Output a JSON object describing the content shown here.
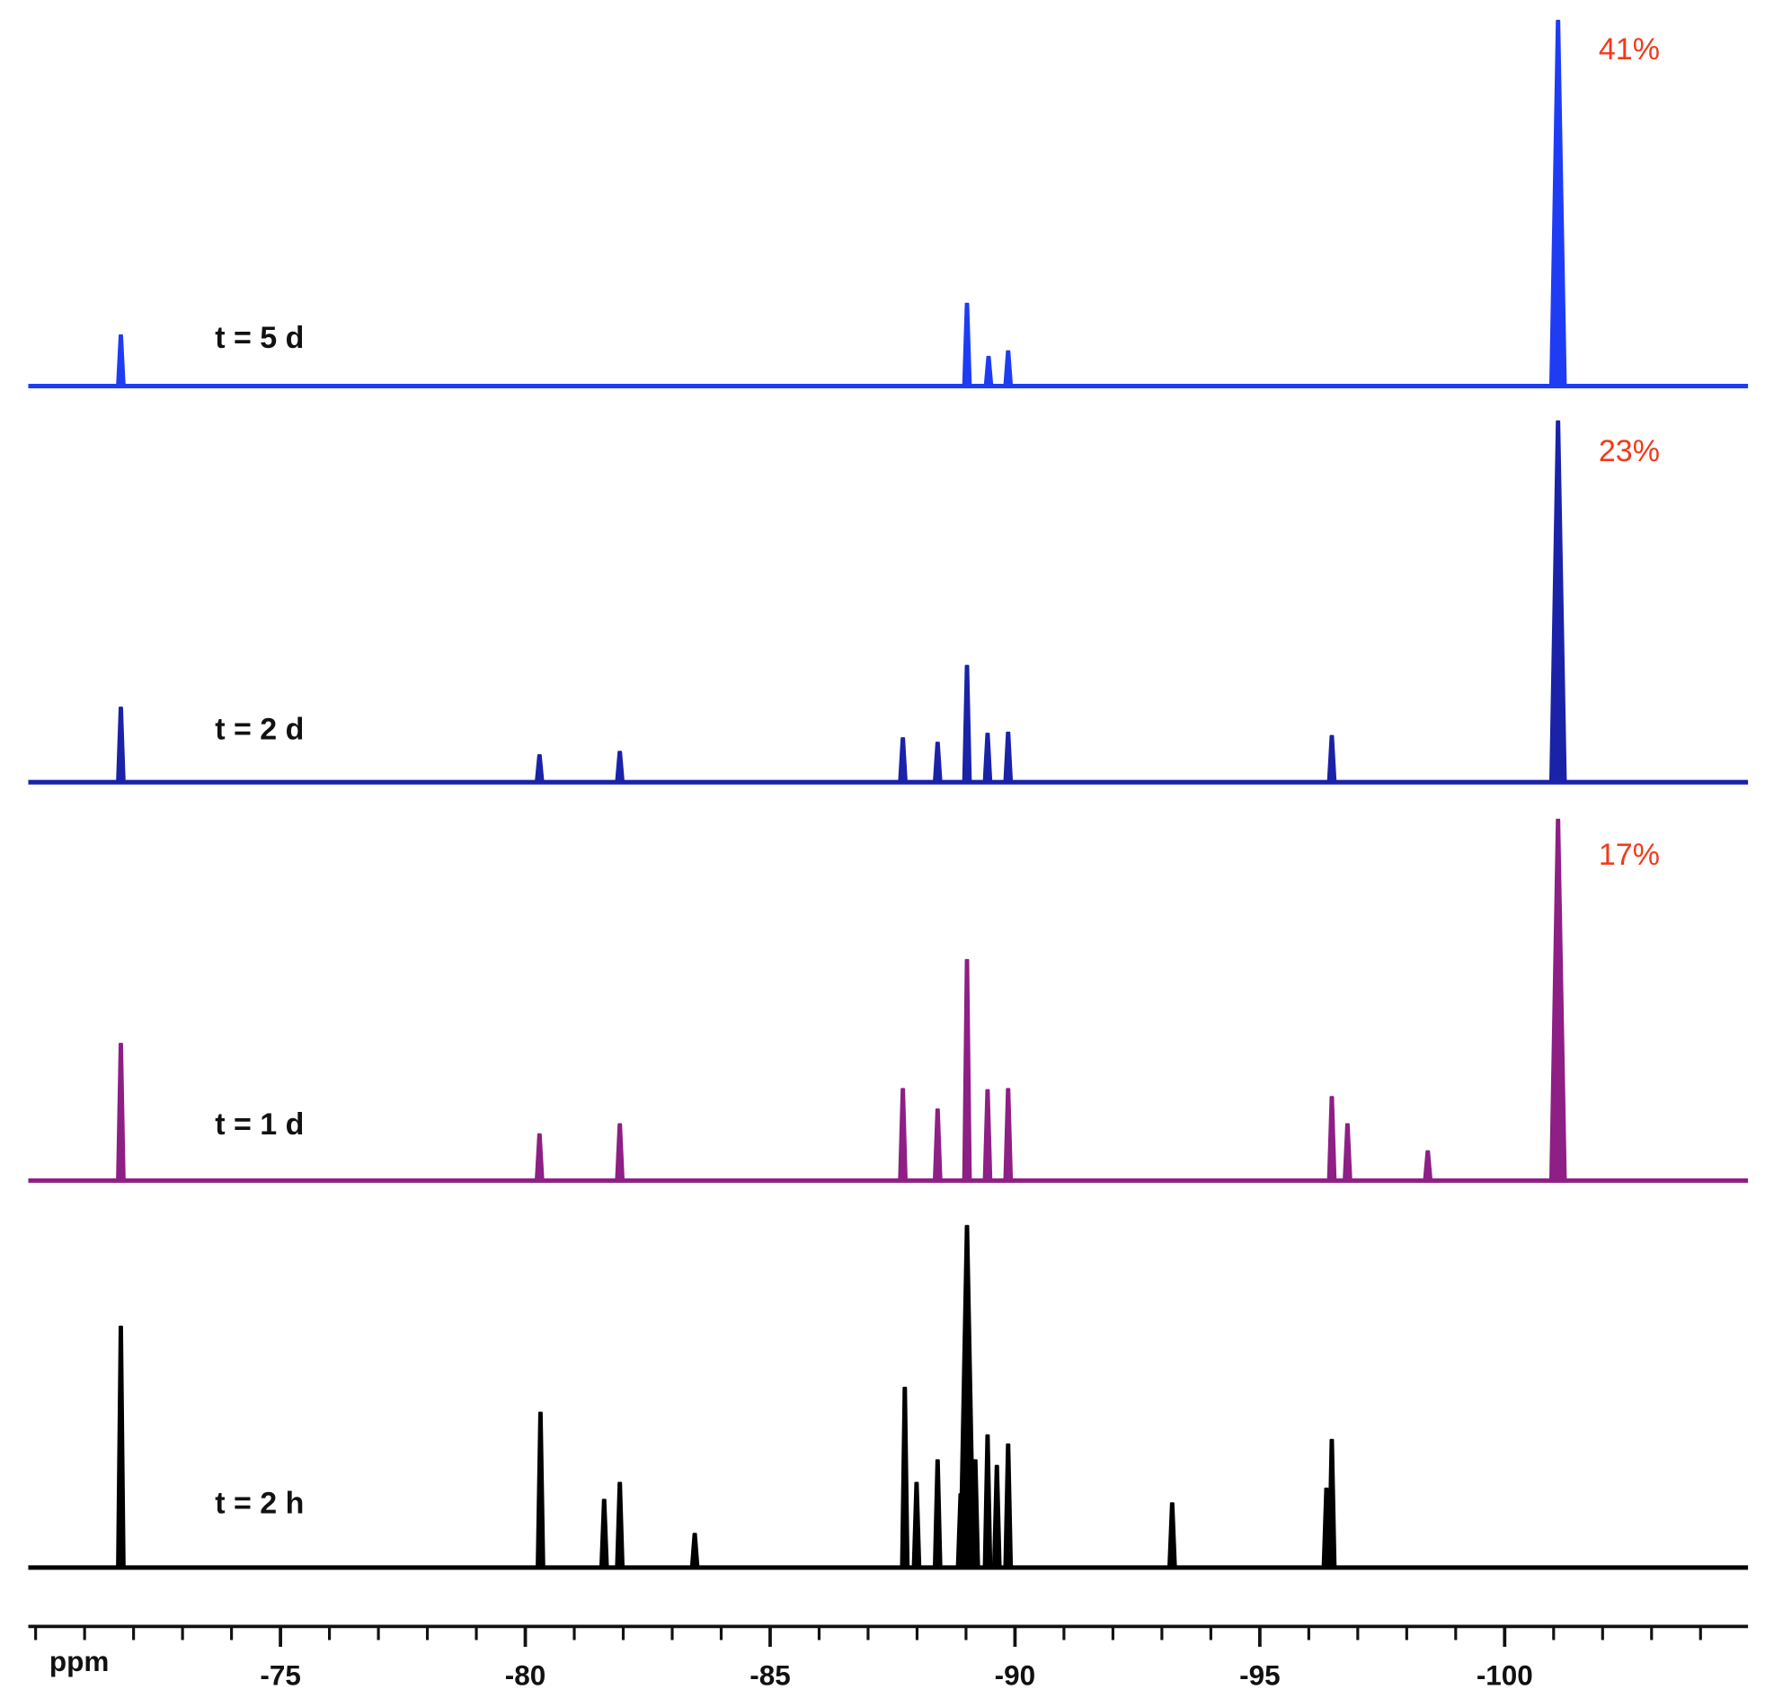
{
  "chart_data": {
    "type": "stacked-spectrum",
    "xlabel": "ppm",
    "xlim": [
      -69.85,
      -104.97
    ],
    "xticks": [
      -75,
      -80,
      -85,
      -90,
      -95,
      -100
    ],
    "xminorticks": [
      -70,
      -71,
      -72,
      -73,
      -74,
      -76,
      -77,
      -78,
      -79,
      -81,
      -82,
      -83,
      -84,
      -86,
      -87,
      -88,
      -89,
      -91,
      -92,
      -93,
      -94,
      -96,
      -97,
      -98,
      -99,
      -101,
      -102,
      -103,
      -104
    ],
    "series": [
      {
        "name": "t = 5 d",
        "color": "#1f3cf5",
        "annotation": {
          "value": 41,
          "label": "41%"
        },
        "x": [
          -71.74,
          -89.02,
          -89.46,
          -89.86,
          -101.09
        ],
        "values": [
          45,
          73,
          26,
          31,
          323
        ]
      },
      {
        "name": "t = 2 d",
        "color": "#1a22a8",
        "annotation": {
          "value": 23,
          "label": "23%"
        },
        "x": [
          -71.74,
          -80.29,
          -81.93,
          -87.71,
          -88.42,
          -89.02,
          -89.44,
          -89.86,
          -96.47,
          -101.09
        ],
        "values": [
          66,
          24,
          27,
          39,
          35,
          103,
          43,
          44,
          41,
          319
        ]
      },
      {
        "name": "t = 1 d",
        "color": "#8e1f85",
        "annotation": {
          "value": 17,
          "label": "17%"
        },
        "x": [
          -71.74,
          -80.29,
          -81.93,
          -87.71,
          -88.42,
          -89.02,
          -89.44,
          -89.86,
          -96.47,
          -96.79,
          -98.43,
          -101.09
        ],
        "values": [
          121,
          41,
          50,
          81,
          63,
          195,
          80,
          81,
          74,
          50,
          26,
          319
        ]
      },
      {
        "name": "t = 2 h",
        "color": "#000000",
        "x": [
          -71.74,
          -80.31,
          -81.61,
          -81.93,
          -83.46,
          -87.75,
          -87.99,
          -88.42,
          -88.89,
          -89.02,
          -89.19,
          -89.44,
          -89.63,
          -89.86,
          -93.21,
          -96.36,
          -96.47
        ],
        "values": [
          213,
          137,
          60,
          75,
          30,
          159,
          75,
          95,
          65,
          302,
          95,
          117,
          90,
          109,
          57,
          70,
          113
        ]
      }
    ]
  }
}
